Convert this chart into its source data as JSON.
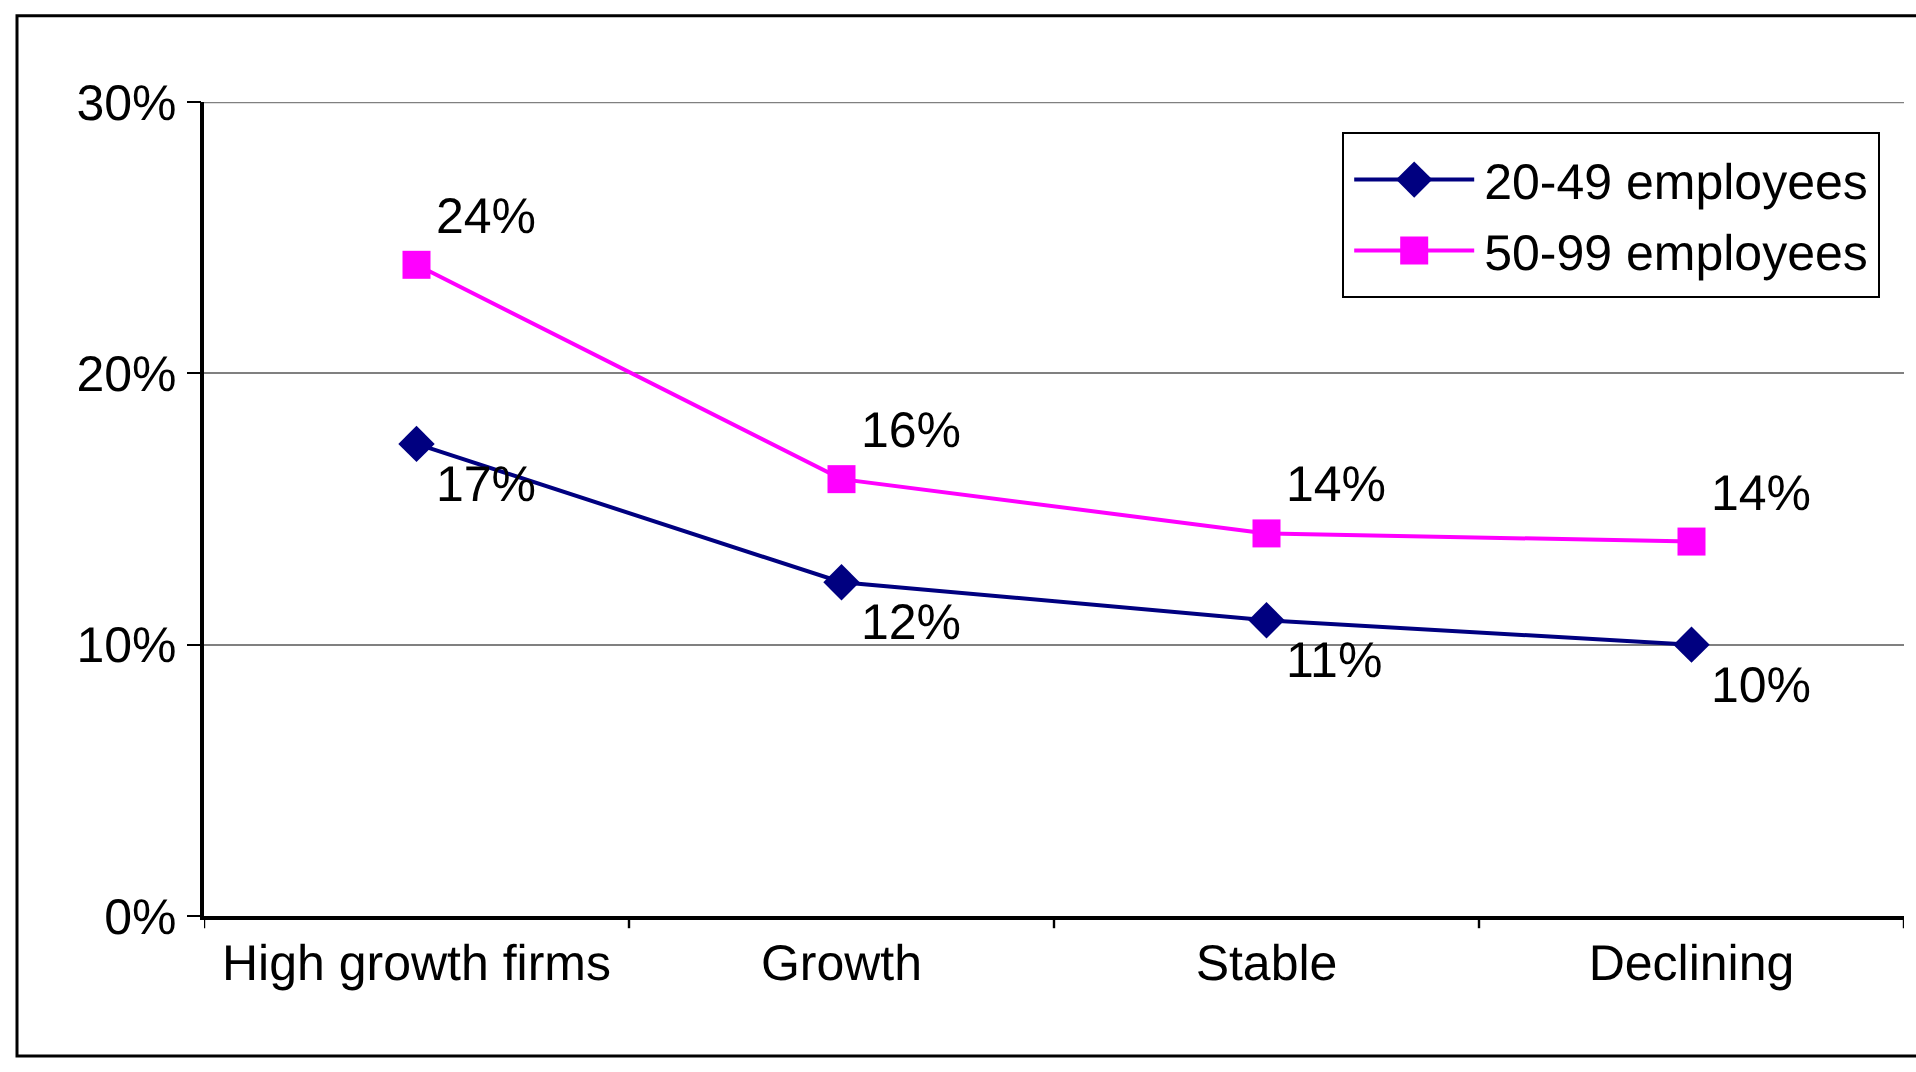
{
  "chart_data": {
    "type": "line",
    "categories": [
      "High growth firms",
      "Growth",
      "Stable",
      "Declining"
    ],
    "series": [
      {
        "name": "20-49 employees",
        "color": "#000080",
        "marker": "diamond",
        "values": [
          17.4,
          12.3,
          10.9,
          10.0
        ],
        "value_labels": [
          "17%",
          "12%",
          "11%",
          "10%"
        ]
      },
      {
        "name": "50-99 employees",
        "color": "#ff00ff",
        "marker": "square",
        "values": [
          24.0,
          16.1,
          14.1,
          13.8
        ],
        "value_labels": [
          "24%",
          "16%",
          "14%",
          "14%"
        ]
      }
    ],
    "ylim": [
      0,
      30
    ],
    "yticks": [
      {
        "value": 0,
        "label": "0%"
      },
      {
        "value": 10,
        "label": "10%"
      },
      {
        "value": 20,
        "label": "20%"
      },
      {
        "value": 30,
        "label": "30%"
      }
    ],
    "grid": "y",
    "legend": "top right",
    "line_style": "solid"
  }
}
